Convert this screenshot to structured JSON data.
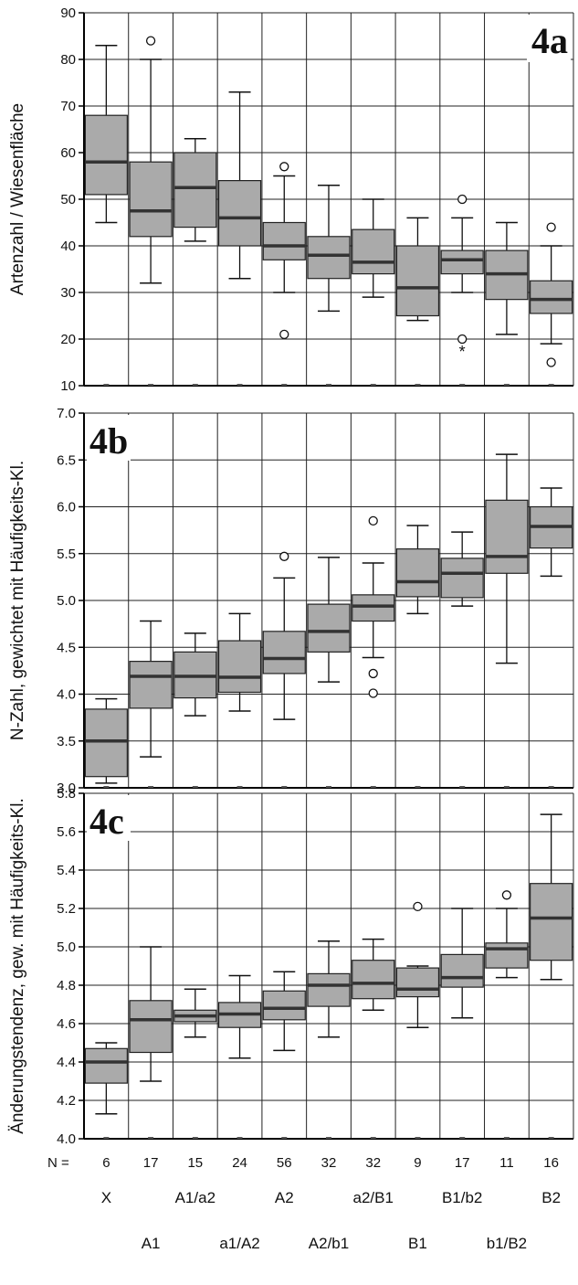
{
  "chart_data": [
    {
      "type": "box",
      "panel_label": "4a",
      "ylabel": "Artenzahl / Wiesenfläche",
      "ylim": [
        10,
        90
      ],
      "yticks": [
        10,
        20,
        30,
        40,
        50,
        60,
        70,
        80,
        90
      ],
      "grid": true,
      "boxes": [
        {
          "min": 45,
          "q1": 51,
          "median": 58,
          "q3": 68,
          "max": 83,
          "outliers": [],
          "extremes": []
        },
        {
          "min": 32,
          "q1": 42,
          "median": 47.5,
          "q3": 58,
          "max": 80,
          "outliers": [
            84
          ],
          "extremes": []
        },
        {
          "min": 41,
          "q1": 44,
          "median": 52.5,
          "q3": 60,
          "max": 63,
          "outliers": [],
          "extremes": []
        },
        {
          "min": 33,
          "q1": 40,
          "median": 46,
          "q3": 54,
          "max": 73,
          "outliers": [],
          "extremes": []
        },
        {
          "min": 30,
          "q1": 37,
          "median": 40,
          "q3": 45,
          "max": 55,
          "outliers": [
            57,
            21
          ],
          "extremes": []
        },
        {
          "min": 26,
          "q1": 33,
          "median": 38,
          "q3": 42,
          "max": 53,
          "outliers": [],
          "extremes": []
        },
        {
          "min": 29,
          "q1": 34,
          "median": 36.5,
          "q3": 43.5,
          "max": 50,
          "outliers": [],
          "extremes": []
        },
        {
          "min": 24,
          "q1": 25,
          "median": 31,
          "q3": 40,
          "max": 46,
          "outliers": [],
          "extremes": []
        },
        {
          "min": 30,
          "q1": 34,
          "median": 37,
          "q3": 39,
          "max": 46,
          "outliers": [
            50,
            20
          ],
          "extremes": [
            18
          ]
        },
        {
          "min": 21,
          "q1": 28.5,
          "median": 34,
          "q3": 39,
          "max": 45,
          "outliers": [],
          "extremes": []
        },
        {
          "min": 19,
          "q1": 25.5,
          "median": 28.5,
          "q3": 32.5,
          "max": 40,
          "outliers": [
            44,
            15
          ],
          "extremes": []
        }
      ]
    },
    {
      "type": "box",
      "panel_label": "4b",
      "ylabel": "N-Zahl, gewichtet mit Häufigkeits-Kl.",
      "ylim": [
        3.0,
        7.0
      ],
      "yticks": [
        "3.0",
        "3.5",
        "4.0",
        "4.5",
        "5.0",
        "5.5",
        "6.0",
        "6.5",
        "7.0"
      ],
      "grid": true,
      "boxes": [
        {
          "min": 3.05,
          "q1": 3.12,
          "median": 3.5,
          "q3": 3.84,
          "max": 3.95,
          "outliers": []
        },
        {
          "min": 3.33,
          "q1": 3.85,
          "median": 4.19,
          "q3": 4.35,
          "max": 4.78,
          "outliers": []
        },
        {
          "min": 3.77,
          "q1": 3.96,
          "median": 4.19,
          "q3": 4.45,
          "max": 4.65,
          "outliers": []
        },
        {
          "min": 3.82,
          "q1": 4.02,
          "median": 4.18,
          "q3": 4.57,
          "max": 4.86,
          "outliers": []
        },
        {
          "min": 3.73,
          "q1": 4.22,
          "median": 4.38,
          "q3": 4.67,
          "max": 5.24,
          "outliers": [
            5.47
          ]
        },
        {
          "min": 4.13,
          "q1": 4.45,
          "median": 4.67,
          "q3": 4.96,
          "max": 5.46,
          "outliers": []
        },
        {
          "min": 4.39,
          "q1": 4.78,
          "median": 4.94,
          "q3": 5.06,
          "max": 5.4,
          "outliers": [
            5.85,
            4.22,
            4.01
          ]
        },
        {
          "min": 4.86,
          "q1": 5.04,
          "median": 5.2,
          "q3": 5.55,
          "max": 5.8,
          "outliers": []
        },
        {
          "min": 4.94,
          "q1": 5.03,
          "median": 5.29,
          "q3": 5.45,
          "max": 5.73,
          "outliers": []
        },
        {
          "min": 4.33,
          "q1": 5.29,
          "median": 5.47,
          "q3": 6.07,
          "max": 6.56,
          "outliers": []
        },
        {
          "min": 5.26,
          "q1": 5.56,
          "median": 5.79,
          "q3": 6.0,
          "max": 6.2,
          "outliers": []
        }
      ]
    },
    {
      "type": "box",
      "panel_label": "4c",
      "ylabel": "Änderungstendenz, gew. mit Häufigkeits-Kl.",
      "ylim": [
        4.0,
        5.8
      ],
      "yticks": [
        "4.0",
        "4.2",
        "4.4",
        "4.6",
        "4.8",
        "5.0",
        "5.2",
        "5.4",
        "5.6",
        "5.8"
      ],
      "grid": true,
      "boxes": [
        {
          "min": 4.13,
          "q1": 4.29,
          "median": 4.4,
          "q3": 4.47,
          "max": 4.5,
          "outliers": []
        },
        {
          "min": 4.3,
          "q1": 4.45,
          "median": 4.62,
          "q3": 4.72,
          "max": 5.0,
          "outliers": []
        },
        {
          "min": 4.53,
          "q1": 4.61,
          "median": 4.64,
          "q3": 4.67,
          "max": 4.78,
          "outliers": []
        },
        {
          "min": 4.42,
          "q1": 4.58,
          "median": 4.65,
          "q3": 4.71,
          "max": 4.85,
          "outliers": []
        },
        {
          "min": 4.46,
          "q1": 4.62,
          "median": 4.68,
          "q3": 4.77,
          "max": 4.87,
          "outliers": []
        },
        {
          "min": 4.53,
          "q1": 4.69,
          "median": 4.8,
          "q3": 4.86,
          "max": 5.03,
          "outliers": []
        },
        {
          "min": 4.67,
          "q1": 4.73,
          "median": 4.81,
          "q3": 4.93,
          "max": 5.04,
          "outliers": []
        },
        {
          "min": 4.58,
          "q1": 4.74,
          "median": 4.78,
          "q3": 4.89,
          "max": 4.9,
          "outliers": [
            5.21
          ]
        },
        {
          "min": 4.63,
          "q1": 4.79,
          "median": 4.84,
          "q3": 4.96,
          "max": 5.2,
          "outliers": []
        },
        {
          "min": 4.84,
          "q1": 4.89,
          "median": 4.99,
          "q3": 5.02,
          "max": 5.2,
          "outliers": [
            5.27
          ]
        },
        {
          "min": 4.83,
          "q1": 4.93,
          "median": 5.15,
          "q3": 5.33,
          "max": 5.69,
          "outliers": []
        }
      ]
    }
  ],
  "n_label": "N =",
  "n_values": [
    "6",
    "17",
    "15",
    "24",
    "56",
    "32",
    "32",
    "9",
    "17",
    "11",
    "16"
  ],
  "categories_top": [
    "X",
    "",
    "A1/a2",
    "",
    "A2",
    "",
    "a2/B1",
    "",
    "B1/b2",
    "",
    "B2"
  ],
  "categories_bottom": [
    "",
    "A1",
    "",
    "a1/A2",
    "",
    "A2/b1",
    "",
    "B1",
    "",
    "b1/B2",
    ""
  ],
  "colors": {
    "box_fill": "#aaaaaa",
    "grid": "#222222",
    "median": "#333333"
  }
}
